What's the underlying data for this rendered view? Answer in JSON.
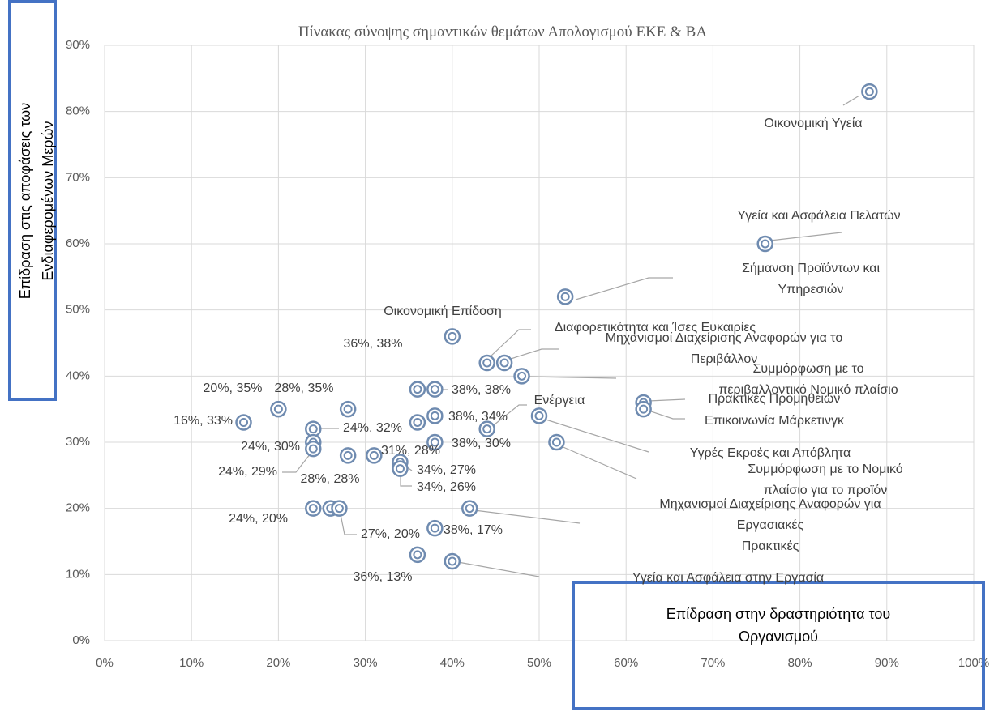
{
  "chart_data": {
    "type": "scatter",
    "title": "Πίνακας σύνοψης σημαντικών θεμάτων Απολογισμού ΕΚΕ & ΒΑ",
    "x_label": "Επίδραση στην δραστηριότητα του Οργανισμού",
    "y_label": "Επίδραση στις αποφάσεις των Ενδιαφερομένων Μερών",
    "xlim": [
      0,
      100
    ],
    "ylim": [
      0,
      90
    ],
    "xticks": [
      {
        "value": 0,
        "label": "0%"
      },
      {
        "value": 10,
        "label": "10%"
      },
      {
        "value": 20,
        "label": "20%"
      },
      {
        "value": 30,
        "label": "30%"
      },
      {
        "value": 40,
        "label": "40%"
      },
      {
        "value": 50,
        "label": "50%"
      },
      {
        "value": 60,
        "label": "60%"
      },
      {
        "value": 70,
        "label": "70%"
      },
      {
        "value": 80,
        "label": "80%"
      },
      {
        "value": 90,
        "label": "90%"
      },
      {
        "value": 100,
        "label": "100%"
      }
    ],
    "yticks": [
      {
        "value": 0,
        "label": "0%"
      },
      {
        "value": 10,
        "label": "10%"
      },
      {
        "value": 20,
        "label": "20%"
      },
      {
        "value": 30,
        "label": "30%"
      },
      {
        "value": 40,
        "label": "40%"
      },
      {
        "value": 50,
        "label": "50%"
      },
      {
        "value": 60,
        "label": "60%"
      },
      {
        "value": 70,
        "label": "70%"
      },
      {
        "value": 80,
        "label": "80%"
      },
      {
        "value": 90,
        "label": "90%"
      }
    ],
    "grid": true,
    "series": [
      {
        "color": "#6f8bb0",
        "x": [
          88,
          76,
          53,
          40,
          44,
          46,
          48,
          44,
          62,
          62,
          50,
          52,
          42,
          40,
          36,
          38,
          36,
          38,
          38,
          20,
          28,
          16,
          24,
          24,
          24,
          28,
          31,
          34,
          34,
          24,
          26,
          27,
          38,
          36
        ],
        "values": [
          83,
          60,
          52,
          46,
          42,
          42,
          40,
          32,
          36,
          35,
          34,
          30,
          20,
          12,
          38,
          38,
          33,
          34,
          30,
          35,
          35,
          33,
          32,
          30,
          29,
          28,
          28,
          27,
          26,
          20,
          20,
          20,
          17,
          13
        ],
        "labels": [
          "Οικονομική Υγεία",
          "Υγεία και Ασφάλεια Πελατών",
          "Σήμανση Προϊόντων και Υπηρεσιών",
          "Οικονομική Επίδοση",
          "Διαφορετικότητα και Ίσες Ευκαιρίες",
          "Μηχανισμοί Διαχείρισης Αναφορών για το Περιβάλλον",
          "Συμμόρφωση με το περιβαλλοντικό Νομικό πλαίσιο",
          "Ενέργεια",
          "Πρακτικές Προμηθειών",
          "Επικοινωνία Μάρκετινγκ",
          "Υγρές Εκροές και Απόβλητα",
          "Συμμόρφωση με το Νομικό πλαίσιο για το προϊόν",
          "Μηχανισμοί Διαχείρισης Αναφορών για Εργασιακές\nΠρακτικές",
          "Υγεία και Ασφάλεια στην Εργασία",
          "36%, 38%",
          "38%, 38%",
          null,
          "38%, 34%",
          "38%, 30%",
          "20%, 35%",
          "28%, 35%",
          "16%, 33%",
          "24%, 32%",
          "24%, 30%",
          "24%, 29%",
          "28%, 28%",
          "31%, 28%",
          "34%, 27%",
          "34%, 26%",
          "24%, 20%",
          null,
          "27%, 20%",
          "38%, 17%",
          "36%, 13%"
        ]
      }
    ]
  }
}
